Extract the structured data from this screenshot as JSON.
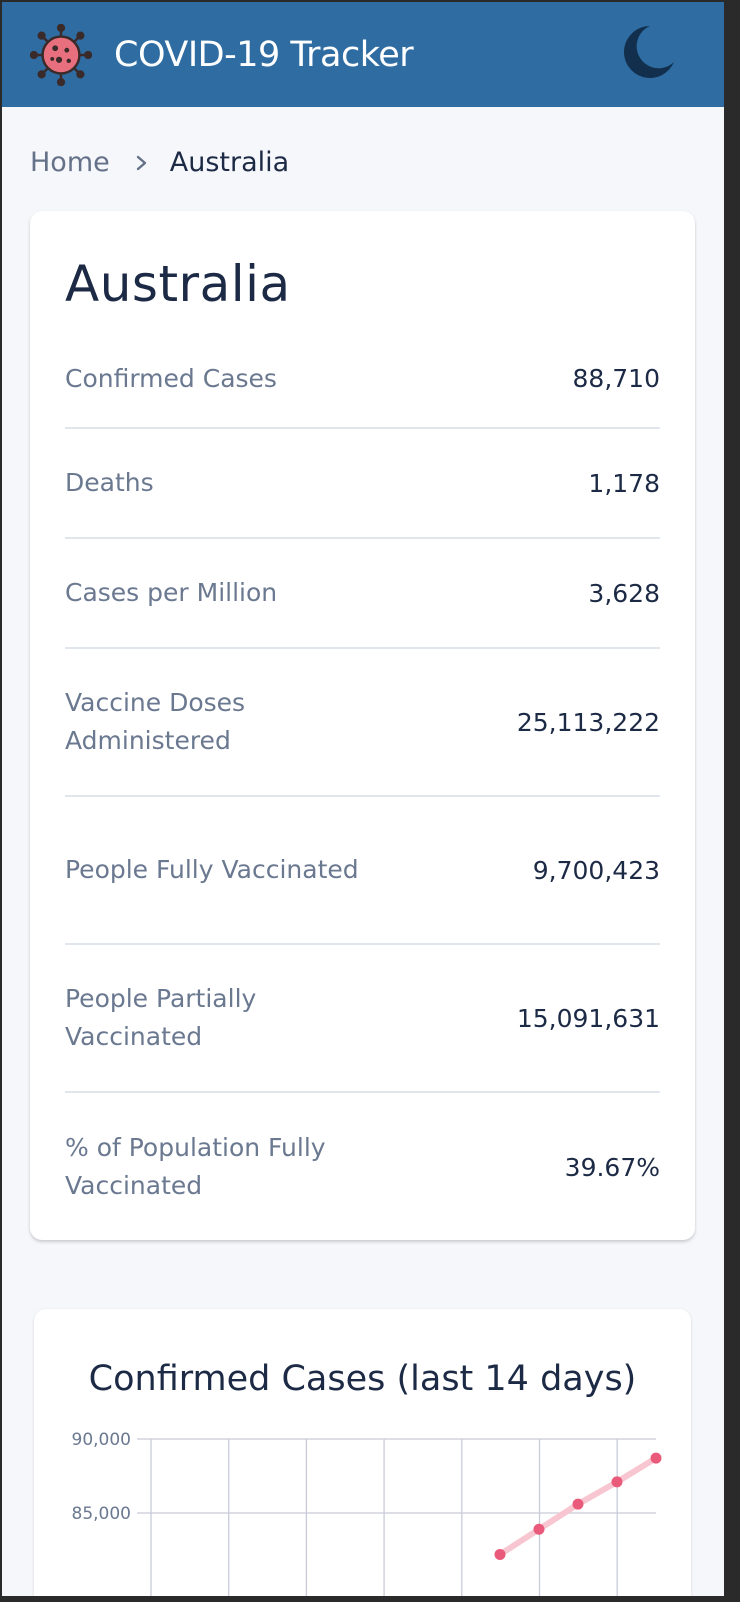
{
  "app": {
    "title": "COVID-19 Tracker",
    "logo_icon": "virus-icon",
    "theme_icon": "moon-icon"
  },
  "breadcrumb": {
    "home": "Home",
    "separator_icon": "chevron-right-icon",
    "current": "Australia"
  },
  "country": {
    "name": "Australia",
    "stats": [
      {
        "label": "Confirmed Cases",
        "value": "88,710"
      },
      {
        "label": "Deaths",
        "value": "1,178"
      },
      {
        "label": "Cases per Million",
        "value": "3,628"
      },
      {
        "label": "Vaccine Doses Administered",
        "value": "25,113,222"
      },
      {
        "label": "People Fully Vaccinated",
        "value": "9,700,423"
      },
      {
        "label": "People Partially Vaccinated",
        "value": "15,091,631"
      },
      {
        "label": "% of Population Fully Vaccinated",
        "value": "39.67%"
      }
    ]
  },
  "colors": {
    "header": "#2e6ca2",
    "accent_line": "#f7c6d0",
    "accent_point": "#ea5a7a"
  },
  "chart_data": {
    "type": "line",
    "title": "Confirmed Cases (last 14 days)",
    "xlabel": "",
    "ylabel": "",
    "yticks": [
      "90,000",
      "85,000"
    ],
    "ylim_visible": [
      81000,
      90000
    ],
    "grid": true,
    "series": [
      {
        "values": [
          82200,
          83900,
          85600,
          87100,
          88710
        ]
      }
    ]
  }
}
